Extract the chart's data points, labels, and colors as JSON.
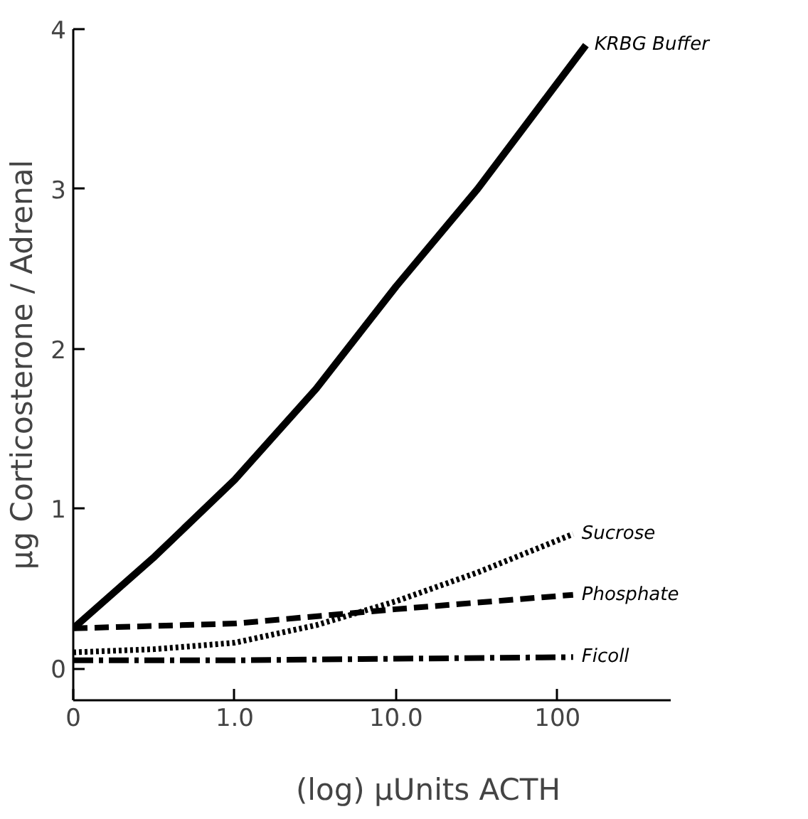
{
  "chart_data": {
    "type": "line",
    "xlabel": "(log) µUnits ACTH",
    "ylabel": "µg Corticosterone / Adrenal",
    "log": "x",
    "xlim": [
      0.1,
      500
    ],
    "ylim": [
      -0.2,
      4
    ],
    "xticks": [
      {
        "value": 0.1,
        "label": "0"
      },
      {
        "value": 1,
        "label": "1.0"
      },
      {
        "value": 10,
        "label": "10.0"
      },
      100
    ],
    "yticks": [
      0,
      1,
      2,
      3,
      4
    ],
    "marker": "none",
    "series": [
      {
        "name": "KRBG Buffer",
        "color": "#000000",
        "line_style": "solid",
        "x": [
          0.1,
          0.32,
          1,
          3.2,
          10,
          32,
          150
        ],
        "values": [
          0.25,
          0.7,
          1.18,
          1.75,
          2.39,
          3.0,
          3.9
        ]
      },
      {
        "name": "Sucrose",
        "color": "#000000",
        "line_style": "dotted",
        "x": [
          0.1,
          0.32,
          1,
          3.2,
          10,
          32,
          125
        ],
        "values": [
          0.1,
          0.12,
          0.16,
          0.27,
          0.42,
          0.6,
          0.84
        ]
      },
      {
        "name": "Phosphate",
        "color": "#000000",
        "line_style": "dashed",
        "x": [
          0.1,
          1,
          10,
          125
        ],
        "values": [
          0.25,
          0.28,
          0.37,
          0.46
        ]
      },
      {
        "name": "Ficoll",
        "color": "#000000",
        "line_style": "dashdot",
        "x": [
          0.1,
          1,
          10,
          125
        ],
        "values": [
          0.05,
          0.05,
          0.06,
          0.07
        ]
      }
    ]
  }
}
